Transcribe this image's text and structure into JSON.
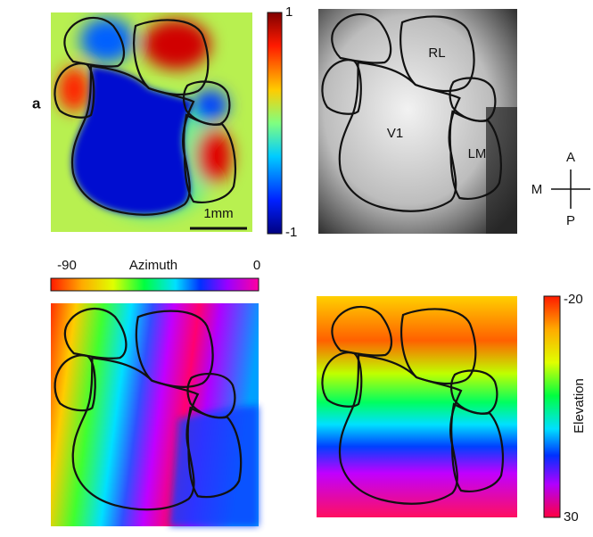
{
  "panel_label": "a",
  "sign_map": {
    "colorbar_max": "1",
    "colorbar_min": "-1",
    "scale_bar": "1mm"
  },
  "anatomy": {
    "areas": [
      "RL",
      "V1",
      "LM"
    ],
    "compass": {
      "anterior": "A",
      "medial": "M",
      "posterior": "P"
    }
  },
  "azimuth": {
    "min": "-90",
    "title": "Azimuth",
    "max": "0"
  },
  "elevation": {
    "min": "-20",
    "title": "Elevation",
    "max": "30"
  }
}
